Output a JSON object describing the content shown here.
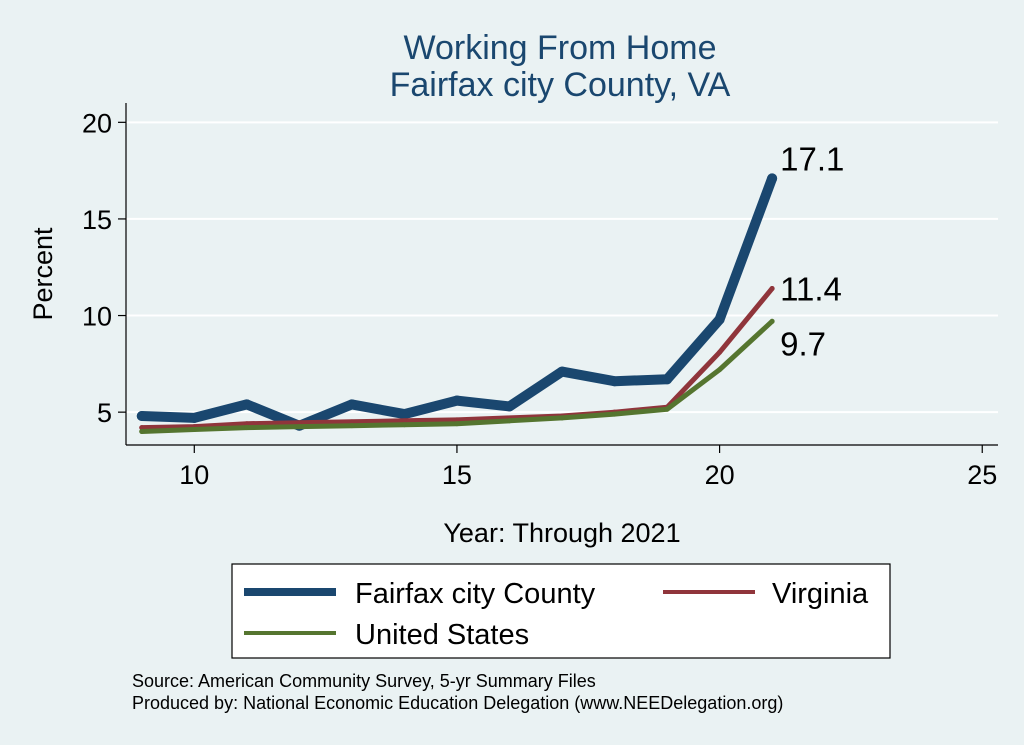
{
  "chart_data": {
    "type": "line",
    "title": [
      "Working From Home",
      "Fairfax city County, VA"
    ],
    "xlabel": "Year: Through 2021",
    "ylabel": "Percent",
    "xlim": [
      8.7,
      25.3
    ],
    "ylim": [
      3.3,
      21.0
    ],
    "xticks": [
      10,
      15,
      20,
      25
    ],
    "yticks": [
      5,
      10,
      15,
      20
    ],
    "grid": true,
    "x": [
      9,
      10,
      11,
      12,
      13,
      14,
      15,
      16,
      17,
      18,
      19,
      20,
      21
    ],
    "series": [
      {
        "name": "Fairfax city County",
        "color": "#1a476f",
        "values": [
          4.8,
          4.7,
          5.4,
          4.3,
          5.4,
          4.9,
          5.6,
          5.3,
          7.1,
          6.6,
          6.7,
          9.8,
          17.1
        ],
        "end_label": "17.1"
      },
      {
        "name": "Virginia",
        "color": "#90353b",
        "values": [
          4.2,
          4.25,
          4.4,
          4.45,
          4.5,
          4.55,
          4.6,
          4.7,
          4.8,
          5.0,
          5.25,
          8.1,
          11.4
        ],
        "end_label": "11.4"
      },
      {
        "name": "United States",
        "color": "#55752f",
        "values": [
          4.0,
          4.1,
          4.2,
          4.25,
          4.3,
          4.35,
          4.4,
          4.55,
          4.7,
          4.9,
          5.15,
          7.2,
          9.7
        ],
        "end_label": "9.7"
      }
    ],
    "legend": {
      "position": "bottom",
      "entries": [
        "Fairfax city County",
        "Virginia",
        "United States"
      ]
    },
    "notes": [
      "Source: American Community Survey, 5-yr Summary Files",
      "Produced by: National Economic Education Delegation (www.NEEDelegation.org)"
    ]
  }
}
